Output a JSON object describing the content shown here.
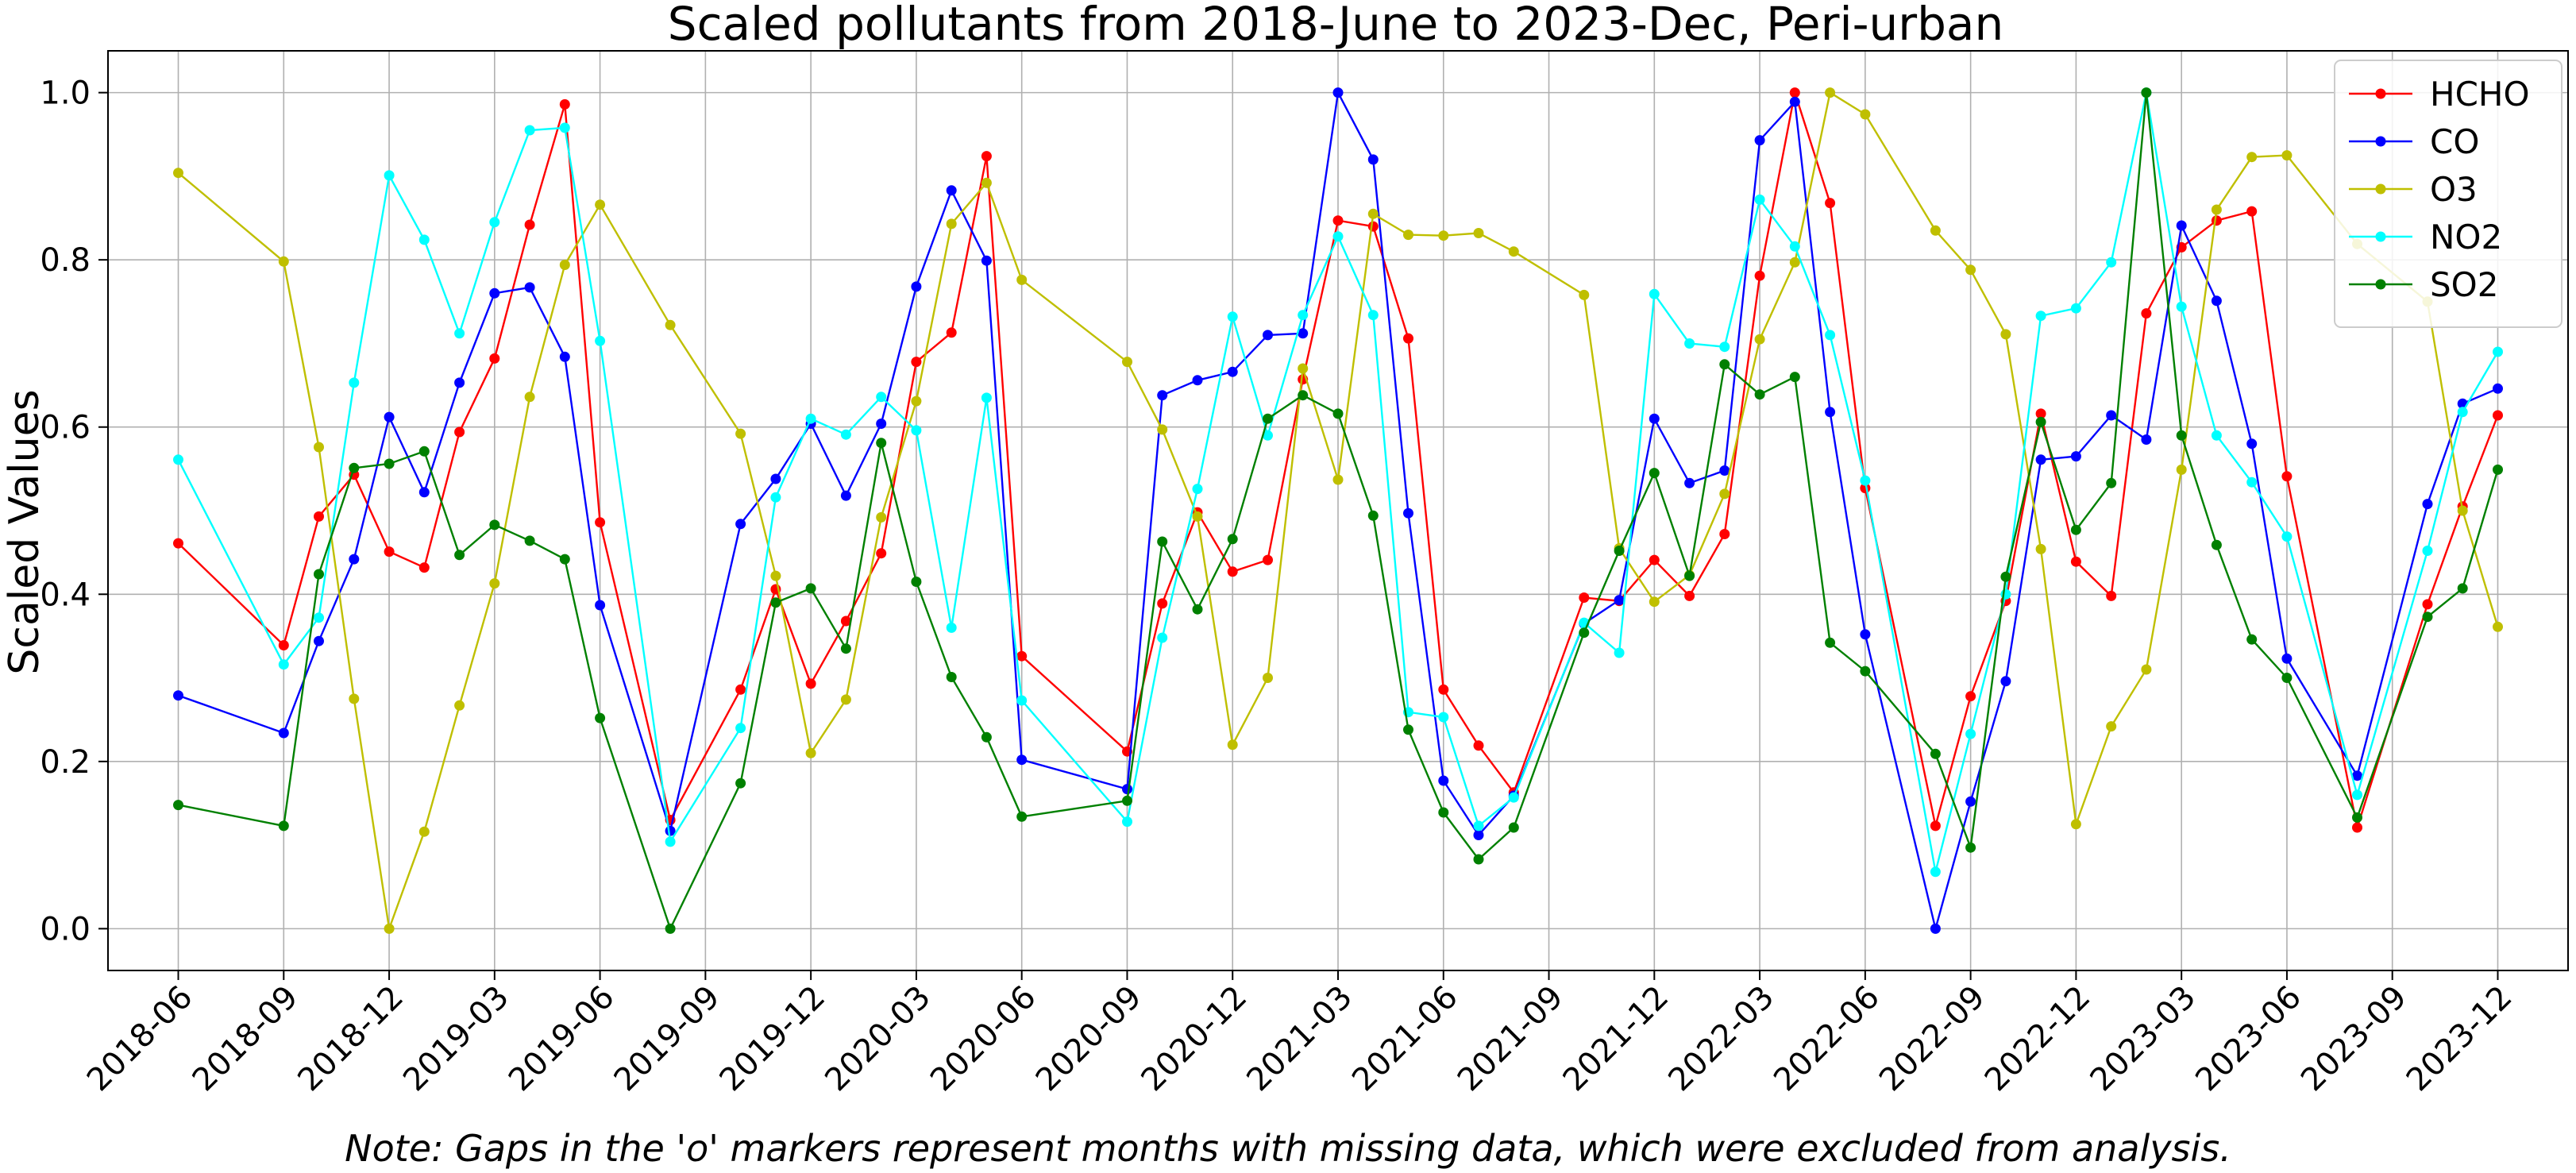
{
  "chart_data": {
    "type": "line",
    "title": "Scaled pollutants from 2018-June to 2023-Dec, Peri-urban",
    "xlabel": "",
    "ylabel": "Scaled Values",
    "note": "Note: Gaps in the 'o' markers represent months with missing data, which were excluded from analysis.",
    "x_range": [
      "2018-04",
      "2024-02"
    ],
    "x_ticks": [
      "2018-06",
      "2018-09",
      "2018-12",
      "2019-03",
      "2019-06",
      "2019-09",
      "2019-12",
      "2020-03",
      "2020-06",
      "2020-09",
      "2020-12",
      "2021-03",
      "2021-06",
      "2021-09",
      "2021-12",
      "2022-03",
      "2022-06",
      "2022-09",
      "2022-12",
      "2023-03",
      "2023-06",
      "2023-09",
      "2023-12"
    ],
    "ylim": [
      -0.05,
      1.05
    ],
    "y_ticks": [
      0.0,
      0.2,
      0.4,
      0.6,
      0.8,
      1.0
    ],
    "y_tick_labels": [
      "0.0",
      "0.2",
      "0.4",
      "0.6",
      "0.8",
      "1.0"
    ],
    "grid": true,
    "legend_position": "top-right",
    "x": [
      "2018-06",
      "2018-09",
      "2018-10",
      "2018-11",
      "2018-12",
      "2019-01",
      "2019-02",
      "2019-03",
      "2019-04",
      "2019-05",
      "2019-06",
      "2019-08",
      "2019-10",
      "2019-11",
      "2019-12",
      "2020-01",
      "2020-02",
      "2020-03",
      "2020-04",
      "2020-05",
      "2020-06",
      "2020-09",
      "2020-10",
      "2020-11",
      "2020-12",
      "2021-01",
      "2021-02",
      "2021-03",
      "2021-04",
      "2021-05",
      "2021-06",
      "2021-07",
      "2021-08",
      "2021-10",
      "2021-11",
      "2021-12",
      "2022-01",
      "2022-02",
      "2022-03",
      "2022-04",
      "2022-05",
      "2022-06",
      "2022-08",
      "2022-09",
      "2022-10",
      "2022-11",
      "2022-12",
      "2023-01",
      "2023-02",
      "2023-03",
      "2023-04",
      "2023-05",
      "2023-06",
      "2023-08",
      "2023-10",
      "2023-11",
      "2023-12"
    ],
    "series": [
      {
        "name": "HCHO",
        "color": "#ff0000",
        "values": [
          0.461,
          0.339,
          0.493,
          0.543,
          0.451,
          0.432,
          0.594,
          0.682,
          0.842,
          0.986,
          0.486,
          0.13,
          0.286,
          0.406,
          0.293,
          0.368,
          0.449,
          0.678,
          0.713,
          0.924,
          0.326,
          0.212,
          0.389,
          0.498,
          0.427,
          0.441,
          0.657,
          0.847,
          0.84,
          0.706,
          0.286,
          0.219,
          0.163,
          0.396,
          0.392,
          0.441,
          0.398,
          0.472,
          0.781,
          1.0,
          0.868,
          0.527,
          0.123,
          0.278,
          0.392,
          0.616,
          0.439,
          0.398,
          0.736,
          0.815,
          0.847,
          0.858,
          0.541,
          0.121,
          0.388,
          0.505,
          0.614
        ]
      },
      {
        "name": "CO",
        "color": "#0000ff",
        "values": [
          0.279,
          0.234,
          0.344,
          0.442,
          0.612,
          0.522,
          0.653,
          0.76,
          0.767,
          0.684,
          0.387,
          0.117,
          0.484,
          0.538,
          0.604,
          0.518,
          0.604,
          0.768,
          0.883,
          0.799,
          0.202,
          0.167,
          0.638,
          0.656,
          0.666,
          0.71,
          0.712,
          1.0,
          0.92,
          0.497,
          0.177,
          0.112,
          0.159,
          0.365,
          0.393,
          0.61,
          0.533,
          0.548,
          0.943,
          0.989,
          0.618,
          0.352,
          0.0,
          0.152,
          0.296,
          0.561,
          0.565,
          0.614,
          0.585,
          0.841,
          0.751,
          0.58,
          0.323,
          0.183,
          0.508,
          0.628,
          0.646
        ]
      },
      {
        "name": "O3",
        "color": "#bfbf00",
        "values": [
          0.904,
          0.798,
          0.576,
          0.275,
          0.0,
          0.116,
          0.267,
          0.413,
          0.636,
          0.794,
          0.866,
          0.722,
          0.592,
          0.422,
          0.21,
          0.274,
          0.492,
          0.631,
          0.843,
          0.892,
          0.776,
          0.678,
          0.597,
          0.493,
          0.22,
          0.3,
          0.67,
          0.537,
          0.855,
          0.83,
          0.829,
          0.832,
          0.81,
          0.758,
          0.455,
          0.391,
          0.423,
          0.52,
          0.705,
          0.797,
          1.0,
          0.974,
          0.835,
          0.788,
          0.711,
          0.454,
          0.125,
          0.242,
          0.31,
          0.549,
          0.86,
          0.923,
          0.925,
          0.819,
          0.75,
          0.5,
          0.361
        ]
      },
      {
        "name": "NO2",
        "color": "#00ffff",
        "values": [
          0.561,
          0.316,
          0.372,
          0.653,
          0.901,
          0.824,
          0.712,
          0.845,
          0.955,
          0.958,
          0.703,
          0.104,
          0.24,
          0.516,
          0.61,
          0.591,
          0.636,
          0.596,
          0.36,
          0.635,
          0.273,
          0.128,
          0.348,
          0.526,
          0.732,
          0.59,
          0.734,
          0.828,
          0.734,
          0.259,
          0.253,
          0.123,
          0.157,
          0.366,
          0.33,
          0.759,
          0.7,
          0.696,
          0.872,
          0.816,
          0.71,
          0.536,
          0.068,
          0.233,
          0.4,
          0.733,
          0.742,
          0.797,
          1.0,
          0.744,
          0.59,
          0.534,
          0.469,
          0.16,
          0.452,
          0.618,
          0.69
        ]
      },
      {
        "name": "SO2",
        "color": "#008000",
        "values": [
          0.148,
          0.123,
          0.424,
          0.551,
          0.556,
          0.571,
          0.447,
          0.483,
          0.464,
          0.442,
          0.252,
          0.0,
          0.174,
          0.39,
          0.407,
          0.335,
          0.581,
          0.415,
          0.301,
          0.229,
          0.134,
          0.153,
          0.463,
          0.382,
          0.466,
          0.61,
          0.638,
          0.616,
          0.494,
          0.238,
          0.139,
          0.083,
          0.121,
          0.354,
          0.452,
          0.545,
          0.422,
          0.675,
          0.639,
          0.66,
          0.342,
          0.308,
          0.209,
          0.097,
          0.421,
          0.606,
          0.477,
          0.533,
          1.0,
          0.59,
          0.459,
          0.346,
          0.3,
          0.133,
          0.373,
          0.407,
          0.549
        ]
      }
    ]
  }
}
